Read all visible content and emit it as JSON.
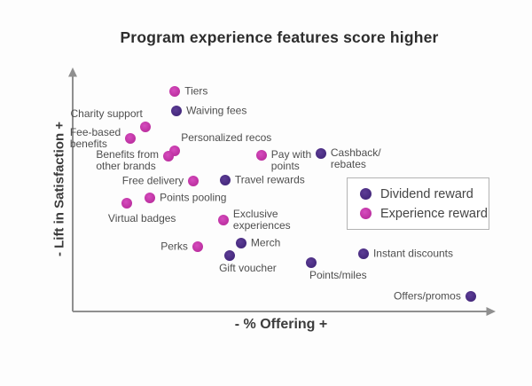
{
  "title": "Program experience features score higher",
  "axes": {
    "x_label": "- % Offering +",
    "y_label": "- Lift in Satisfaction +"
  },
  "legend": {
    "items": [
      {
        "key": "dividend",
        "label": "Dividend reward"
      },
      {
        "key": "experience",
        "label": "Experience reward"
      }
    ]
  },
  "colors": {
    "dividend": "#44287c",
    "dividend_light": "#5d3d96",
    "experience": "#bb2f9f",
    "experience_light": "#d64cbe",
    "axis": "#8f8f8f",
    "label_text": "#4e4e4e",
    "title_text": "#2d2d2d",
    "legend_border": "#b3b3b3"
  },
  "chart_data": {
    "type": "scatter",
    "title": "Program experience features score higher",
    "xlabel": "- % Offering +",
    "ylabel": "- Lift in Satisfaction +",
    "xlim": [
      0,
      100
    ],
    "ylim": [
      0,
      100
    ],
    "grid": false,
    "legend_position": "middle-right",
    "axis_note": "Qualitative axes: x = % offering (increases right), y = lift in satisfaction (increases up); values estimated 0-100 from point positions",
    "series": [
      {
        "name": "Experience reward",
        "key": "experience",
        "points": [
          {
            "label": "Tiers",
            "x": 24.2,
            "y": 90.5,
            "label_placement": "right"
          },
          {
            "label": "Charity support",
            "x": 17.2,
            "y": 75.9,
            "label_placement": "above-left"
          },
          {
            "label": "Fee-based\nbenefits",
            "x": 13.7,
            "y": 71.2,
            "label_placement": "left"
          },
          {
            "label": "Personalized recos",
            "x": 24.2,
            "y": 66.1,
            "label_placement": "above-right"
          },
          {
            "label": "Benefits from\nother brands",
            "x": 22.7,
            "y": 63.9,
            "label_placement": "left",
            "label_dy": 5
          },
          {
            "label": "Pay with\npoints",
            "x": 44.7,
            "y": 64.2,
            "label_placement": "right",
            "label_dy": 6
          },
          {
            "label": "Free delivery",
            "x": 28.6,
            "y": 53.6,
            "label_placement": "left"
          },
          {
            "label": "Points pooling",
            "x": 18.3,
            "y": 46.7,
            "label_placement": "right"
          },
          {
            "label": "Virtual badges",
            "x": 12.8,
            "y": 44.5,
            "label_placement": "below",
            "label_dx": -9,
            "label_dy": 3
          },
          {
            "label": "Exclusive\nexperiences",
            "x": 35.7,
            "y": 37.6,
            "label_placement": "right"
          },
          {
            "label": "Perks",
            "x": 29.6,
            "y": 26.6,
            "label_placement": "left"
          }
        ]
      },
      {
        "name": "Dividend reward",
        "key": "dividend",
        "points": [
          {
            "label": "Waiving fees",
            "x": 24.6,
            "y": 82.5,
            "label_placement": "right"
          },
          {
            "label": "Cashback/\nrebates",
            "x": 58.8,
            "y": 65.0,
            "label_placement": "right",
            "label_dy": 6
          },
          {
            "label": "Travel rewards",
            "x": 36.1,
            "y": 54.0,
            "label_placement": "right"
          },
          {
            "label": "Merch",
            "x": 39.9,
            "y": 28.1,
            "label_placement": "right"
          },
          {
            "label": "Gift voucher",
            "x": 37.2,
            "y": 23.0,
            "label_placement": "below"
          },
          {
            "label": "Instant discounts",
            "x": 68.9,
            "y": 23.7,
            "label_placement": "right"
          },
          {
            "label": "Points/miles",
            "x": 56.5,
            "y": 20.1,
            "label_placement": "below",
            "label_dx": 10
          },
          {
            "label": "Offers/promos",
            "x": 94.3,
            "y": 6.2,
            "label_placement": "left"
          }
        ]
      }
    ]
  }
}
